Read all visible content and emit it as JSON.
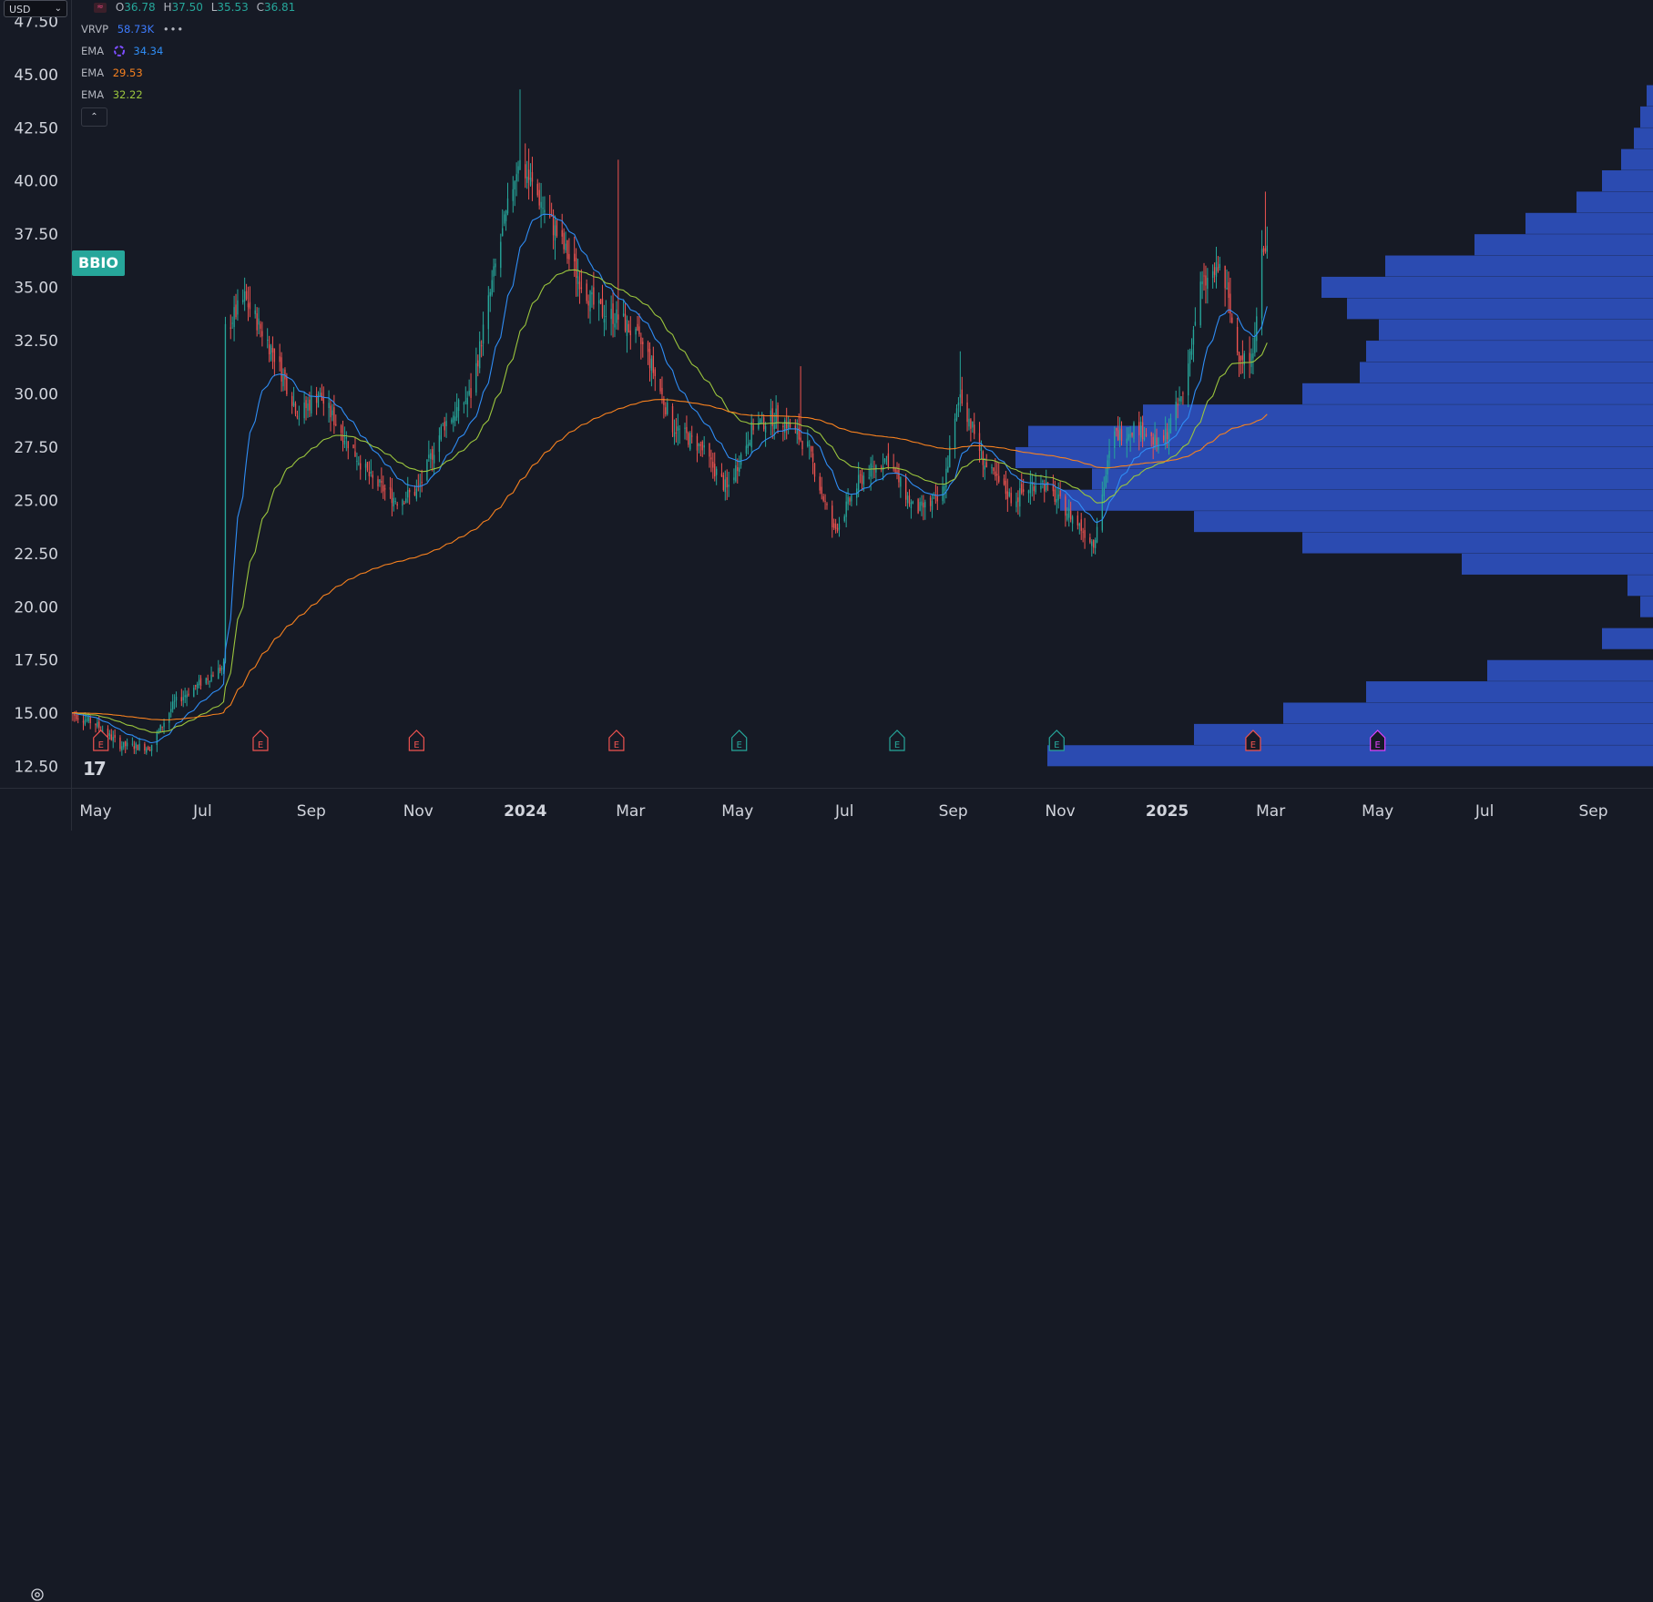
{
  "currency": {
    "label": "USD"
  },
  "symbol": {
    "ticker": "BBIO"
  },
  "ohlc": {
    "open_key": "O",
    "open": "36.78",
    "high_key": "H",
    "high": "37.50",
    "low_key": "L",
    "low": "35.53",
    "close_key": "C",
    "close": "36.81"
  },
  "indicators": [
    {
      "name": "VRVP",
      "value": "58.73K",
      "color": "#3d7bfd"
    },
    {
      "name": "EMA",
      "value": "34.34",
      "color": "#2f8df5"
    },
    {
      "name": "EMA",
      "value": "29.53",
      "color": "#f7811f"
    },
    {
      "name": "EMA",
      "value": "32.22",
      "color": "#9bc53d"
    }
  ],
  "menu_dots": "•••",
  "collapse_glyph": "⌃",
  "time_labels": [
    "May",
    "Jul",
    "Sep",
    "Nov",
    "2024",
    "Mar",
    "May",
    "Jul",
    "Sep",
    "Nov",
    "2025",
    "Mar",
    "May",
    "Jul",
    "Sep"
  ],
  "earnings_label": "E",
  "colors": {
    "background": "#161a25",
    "up": "#26a69a",
    "down": "#ef5350",
    "volume_profile": "#2e4fbd",
    "grid": "#2a2e39"
  },
  "chart_data": {
    "type": "candlestick",
    "title": "",
    "ylim": [
      11.5,
      48.5
    ],
    "y_ticks": [
      "12.50",
      "15.00",
      "17.50",
      "20.00",
      "22.50",
      "25.00",
      "27.50",
      "30.00",
      "32.50",
      "35.00",
      "37.50",
      "40.00",
      "42.50",
      "45.00",
      "47.50"
    ],
    "x_range": [
      "2023-04-17",
      "2025-10-05"
    ],
    "x_ticks": [
      {
        "date": "2023-05-01",
        "label": "May"
      },
      {
        "date": "2023-07-01",
        "label": "Jul"
      },
      {
        "date": "2023-09-01",
        "label": "Sep"
      },
      {
        "date": "2023-11-01",
        "label": "Nov"
      },
      {
        "date": "2024-01-01",
        "label": "2024"
      },
      {
        "date": "2024-03-01",
        "label": "Mar"
      },
      {
        "date": "2024-05-01",
        "label": "May"
      },
      {
        "date": "2024-07-01",
        "label": "Jul"
      },
      {
        "date": "2024-09-01",
        "label": "Sep"
      },
      {
        "date": "2024-11-01",
        "label": "Nov"
      },
      {
        "date": "2025-01-01",
        "label": "2025"
      },
      {
        "date": "2025-03-01",
        "label": "Mar"
      },
      {
        "date": "2025-05-01",
        "label": "May"
      },
      {
        "date": "2025-07-01",
        "label": "Jul"
      },
      {
        "date": "2025-09-01",
        "label": "Sep"
      }
    ],
    "price_path": [
      [
        "2023-04-17",
        15.0
      ],
      [
        "2023-05-01",
        14.5
      ],
      [
        "2023-05-15",
        13.5
      ],
      [
        "2023-06-01",
        13.4
      ],
      [
        "2023-06-15",
        15.5
      ],
      [
        "2023-07-01",
        16.5
      ],
      [
        "2023-07-13",
        17.2
      ],
      [
        "2023-07-14",
        33.0
      ],
      [
        "2023-07-25",
        34.5
      ],
      [
        "2023-08-10",
        32.0
      ],
      [
        "2023-08-25",
        29.0
      ],
      [
        "2023-09-05",
        30.0
      ],
      [
        "2023-09-20",
        28.0
      ],
      [
        "2023-10-05",
        26.0
      ],
      [
        "2023-10-20",
        25.0
      ],
      [
        "2023-11-01",
        25.5
      ],
      [
        "2023-11-15",
        28.5
      ],
      [
        "2023-12-01",
        30.0
      ],
      [
        "2023-12-15",
        36.0
      ],
      [
        "2023-12-28",
        41.0
      ],
      [
        "2024-01-10",
        39.0
      ],
      [
        "2024-01-25",
        36.5
      ],
      [
        "2024-02-10",
        34.0
      ],
      [
        "2024-02-25",
        33.5
      ],
      [
        "2024-03-10",
        32.0
      ],
      [
        "2024-03-25",
        28.5
      ],
      [
        "2024-04-10",
        27.5
      ],
      [
        "2024-04-25",
        25.5
      ],
      [
        "2024-05-10",
        28.5
      ],
      [
        "2024-05-25",
        29.0
      ],
      [
        "2024-06-10",
        27.5
      ],
      [
        "2024-06-25",
        23.5
      ],
      [
        "2024-07-10",
        26.0
      ],
      [
        "2024-07-25",
        27.0
      ],
      [
        "2024-08-10",
        24.5
      ],
      [
        "2024-08-25",
        25.0
      ],
      [
        "2024-09-05",
        30.0
      ],
      [
        "2024-09-20",
        26.5
      ],
      [
        "2024-10-05",
        25.0
      ],
      [
        "2024-10-20",
        26.0
      ],
      [
        "2024-11-05",
        24.5
      ],
      [
        "2024-11-20",
        23.0
      ],
      [
        "2024-12-01",
        28.0
      ],
      [
        "2024-12-15",
        28.5
      ],
      [
        "2024-12-28",
        27.5
      ],
      [
        "2025-01-10",
        30.0
      ],
      [
        "2025-01-20",
        35.0
      ],
      [
        "2025-02-01",
        36.0
      ],
      [
        "2025-02-10",
        32.0
      ],
      [
        "2025-02-18",
        31.5
      ],
      [
        "2025-02-24",
        36.5
      ],
      [
        "2025-02-27",
        36.81
      ]
    ],
    "wick_spikes": [
      {
        "date": "2023-12-29",
        "high": 44.3
      },
      {
        "date": "2024-02-23",
        "high": 41.0
      },
      {
        "date": "2024-06-06",
        "high": 31.3
      },
      {
        "date": "2024-09-05",
        "high": 32.0
      },
      {
        "date": "2025-02-26",
        "high": 39.5
      }
    ],
    "series": [
      {
        "name": "EMA",
        "value_label": "34.34",
        "color": "#2f8df5",
        "period": 20
      },
      {
        "name": "EMA",
        "value_label": "32.22",
        "color": "#9bc53d",
        "period": 50
      },
      {
        "name": "EMA",
        "value_label": "29.53",
        "color": "#f7811f",
        "period": 200
      }
    ],
    "volume_profile": [
      [
        13.0,
        0.95
      ],
      [
        14.0,
        0.72
      ],
      [
        15.0,
        0.58
      ],
      [
        16.0,
        0.45
      ],
      [
        17.0,
        0.26
      ],
      [
        18.5,
        0.08
      ],
      [
        20.0,
        0.02
      ],
      [
        21.0,
        0.04
      ],
      [
        22.0,
        0.3
      ],
      [
        23.0,
        0.55
      ],
      [
        24.0,
        0.72
      ],
      [
        25.0,
        0.93
      ],
      [
        26.0,
        0.88
      ],
      [
        27.0,
        1.0
      ],
      [
        28.0,
        0.98
      ],
      [
        29.0,
        0.8
      ],
      [
        30.0,
        0.55
      ],
      [
        31.0,
        0.46
      ],
      [
        32.0,
        0.45
      ],
      [
        33.0,
        0.43
      ],
      [
        34.0,
        0.48
      ],
      [
        35.0,
        0.52
      ],
      [
        36.0,
        0.42
      ],
      [
        37.0,
        0.28
      ],
      [
        38.0,
        0.2
      ],
      [
        39.0,
        0.12
      ],
      [
        40.0,
        0.08
      ],
      [
        41.0,
        0.05
      ],
      [
        42.0,
        0.03
      ],
      [
        43.0,
        0.02
      ],
      [
        44.0,
        0.01
      ]
    ],
    "earnings_dates": [
      {
        "date": "2023-05-04",
        "color": "#ef5350"
      },
      {
        "date": "2023-08-03",
        "color": "#ef5350"
      },
      {
        "date": "2023-10-31",
        "color": "#ef5350"
      },
      {
        "date": "2024-02-22",
        "color": "#ef5350"
      },
      {
        "date": "2024-05-02",
        "color": "#26a69a"
      },
      {
        "date": "2024-07-31",
        "color": "#26a69a"
      },
      {
        "date": "2024-10-30",
        "color": "#26a69a"
      },
      {
        "date": "2025-02-19",
        "color": "#ef5350"
      },
      {
        "date": "2025-05-01",
        "color": "#e040fb"
      }
    ]
  }
}
